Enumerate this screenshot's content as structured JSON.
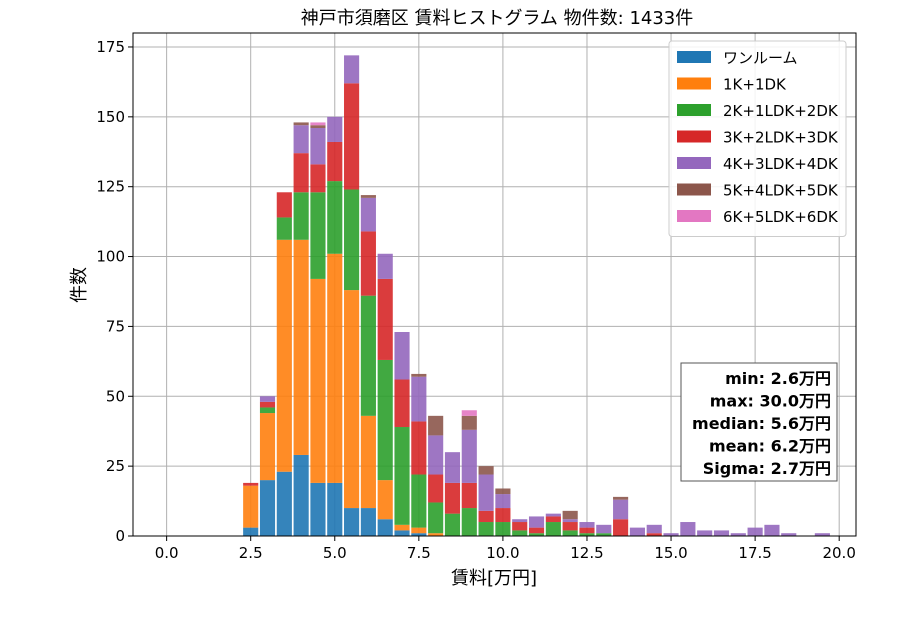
{
  "chart_data": {
    "type": "bar",
    "stacked": true,
    "title": "神戸市須磨区 賃料ヒストグラム  物件数: 1433件",
    "xlabel": "賃料[万円]",
    "ylabel": "件数",
    "xlim": [
      -1.0,
      20.5
    ],
    "ylim": [
      0,
      180
    ],
    "bin_width": 0.5,
    "grid": true,
    "legend_position": "upper-right",
    "x_ticks": [
      {
        "value": 0.0,
        "label": "0.0"
      },
      {
        "value": 2.5,
        "label": "2.5"
      },
      {
        "value": 5.0,
        "label": "5.0"
      },
      {
        "value": 7.5,
        "label": "7.5"
      },
      {
        "value": 10.0,
        "label": "10.0"
      },
      {
        "value": 12.5,
        "label": "12.5"
      },
      {
        "value": 15.0,
        "label": "15.0"
      },
      {
        "value": 17.5,
        "label": "17.5"
      },
      {
        "value": 20.0,
        "label": "20.0"
      }
    ],
    "y_ticks": [
      {
        "value": 0,
        "label": "0"
      },
      {
        "value": 25,
        "label": "25"
      },
      {
        "value": 50,
        "label": "50"
      },
      {
        "value": 75,
        "label": "75"
      },
      {
        "value": 100,
        "label": "100"
      },
      {
        "value": 125,
        "label": "125"
      },
      {
        "value": 150,
        "label": "150"
      },
      {
        "value": 175,
        "label": "175"
      }
    ],
    "x": [
      2.5,
      3.0,
      3.5,
      4.0,
      4.5,
      5.0,
      5.5,
      6.0,
      6.5,
      7.0,
      7.5,
      8.0,
      8.5,
      9.0,
      9.5,
      10.0,
      10.5,
      11.0,
      11.5,
      12.0,
      12.5,
      13.0,
      13.5,
      14.0,
      14.5,
      15.0,
      15.5,
      16.0,
      16.5,
      17.0,
      17.5,
      18.0,
      18.5,
      19.0,
      19.5
    ],
    "series": [
      {
        "name": "ワンルーム",
        "color": "#1f77b4",
        "values": [
          3,
          20,
          23,
          29,
          19,
          19,
          10,
          10,
          6,
          2,
          1,
          0,
          0,
          0,
          0,
          0,
          0,
          0,
          0,
          0,
          0,
          0,
          0,
          0,
          0,
          0,
          0,
          0,
          0,
          0,
          0,
          0,
          0,
          0,
          0
        ]
      },
      {
        "name": "1K+1DK",
        "color": "#ff7f0e",
        "values": [
          15,
          24,
          83,
          77,
          73,
          82,
          78,
          33,
          14,
          2,
          2,
          1,
          0,
          0,
          0,
          0,
          0,
          0,
          0,
          0,
          0,
          0,
          0,
          0,
          0,
          0,
          0,
          0,
          0,
          0,
          0,
          0,
          0,
          0,
          0
        ]
      },
      {
        "name": "2K+1LDK+2DK",
        "color": "#2ca02c",
        "values": [
          0,
          2,
          8,
          17,
          31,
          26,
          36,
          43,
          43,
          35,
          19,
          11,
          8,
          10,
          5,
          5,
          2,
          1,
          5,
          2,
          1,
          1,
          0,
          0,
          0,
          0,
          0,
          0,
          0,
          0,
          0,
          0,
          0,
          0,
          0
        ]
      },
      {
        "name": "3K+2LDK+3DK",
        "color": "#d62728",
        "values": [
          1,
          2,
          9,
          14,
          10,
          14,
          38,
          23,
          29,
          17,
          19,
          10,
          11,
          9,
          4,
          5,
          3,
          2,
          2,
          3,
          2,
          0,
          6,
          0,
          1,
          0,
          0,
          0,
          0,
          0,
          0,
          0,
          0,
          0,
          0
        ]
      },
      {
        "name": "4K+3LDK+4DK",
        "color": "#9467bd",
        "values": [
          0,
          2,
          0,
          10,
          13,
          9,
          10,
          12,
          9,
          17,
          16,
          14,
          11,
          19,
          13,
          5,
          1,
          4,
          1,
          1,
          2,
          3,
          7,
          3,
          3,
          1,
          5,
          2,
          2,
          1,
          3,
          4,
          1,
          0,
          1
        ]
      },
      {
        "name": "5K+4LDK+5DK",
        "color": "#8c564b",
        "values": [
          0,
          0,
          0,
          1,
          1,
          0,
          0,
          1,
          0,
          0,
          1,
          7,
          0,
          5,
          3,
          2,
          0,
          0,
          0,
          3,
          0,
          0,
          1,
          0,
          0,
          0,
          0,
          0,
          0,
          0,
          0,
          0,
          0,
          0,
          0
        ]
      },
      {
        "name": "6K+5LDK+6DK",
        "color": "#e377c2",
        "values": [
          0,
          0,
          0,
          0,
          1,
          0,
          0,
          0,
          0,
          0,
          0,
          0,
          0,
          2,
          0,
          0,
          0,
          0,
          0,
          0,
          0,
          0,
          0,
          0,
          0,
          0,
          0,
          0,
          0,
          0,
          0,
          0,
          0,
          0,
          0
        ]
      }
    ],
    "stats_lines": [
      "min: 2.6万円",
      "max: 30.0万円",
      "median: 5.6万円",
      "mean: 6.2万円",
      "Sigma: 2.7万円"
    ]
  }
}
